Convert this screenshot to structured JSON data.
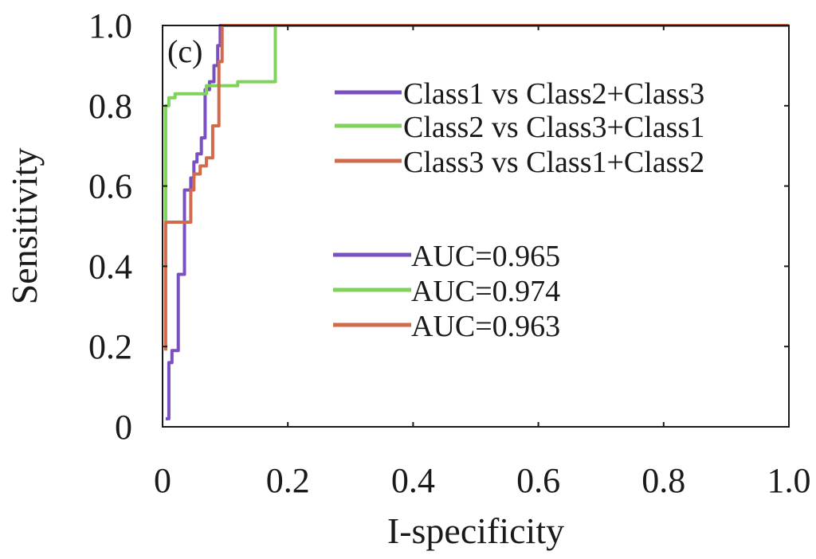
{
  "chart_data": {
    "type": "line",
    "panel_label": "(c)",
    "xlabel": "I-specificity",
    "ylabel": "Sensitivity",
    "xlim": [
      0,
      1
    ],
    "ylim": [
      0,
      1
    ],
    "x_ticks": [
      "0",
      "0.2",
      "0.4",
      "0.6",
      "0.8",
      "1.0"
    ],
    "y_ticks": [
      "0",
      "0.2",
      "0.4",
      "0.6",
      "0.8",
      "1.0"
    ],
    "grid": false,
    "legend_placement": "top-right",
    "series": [
      {
        "name": "Class1 vs Class2+Class3",
        "auc_label": "AUC=0.965",
        "color": "#7a4fc0",
        "points": [
          [
            0.005,
            0.02
          ],
          [
            0.01,
            0.02
          ],
          [
            0.01,
            0.16
          ],
          [
            0.015,
            0.16
          ],
          [
            0.015,
            0.19
          ],
          [
            0.025,
            0.19
          ],
          [
            0.025,
            0.38
          ],
          [
            0.035,
            0.38
          ],
          [
            0.035,
            0.59
          ],
          [
            0.045,
            0.59
          ],
          [
            0.045,
            0.62
          ],
          [
            0.05,
            0.62
          ],
          [
            0.05,
            0.66
          ],
          [
            0.055,
            0.66
          ],
          [
            0.055,
            0.68
          ],
          [
            0.062,
            0.68
          ],
          [
            0.062,
            0.72
          ],
          [
            0.068,
            0.72
          ],
          [
            0.068,
            0.84
          ],
          [
            0.075,
            0.84
          ],
          [
            0.075,
            0.86
          ],
          [
            0.082,
            0.86
          ],
          [
            0.082,
            0.9
          ],
          [
            0.088,
            0.9
          ],
          [
            0.088,
            0.95
          ],
          [
            0.092,
            0.95
          ],
          [
            0.092,
            1.0
          ],
          [
            1.0,
            1.0
          ]
        ]
      },
      {
        "name": "Class2 vs Class3+Class1",
        "auc_label": "AUC=0.974",
        "color": "#7fd35a",
        "points": [
          [
            0.005,
            0.51
          ],
          [
            0.005,
            0.8
          ],
          [
            0.01,
            0.8
          ],
          [
            0.01,
            0.82
          ],
          [
            0.02,
            0.82
          ],
          [
            0.02,
            0.83
          ],
          [
            0.07,
            0.83
          ],
          [
            0.07,
            0.85
          ],
          [
            0.12,
            0.85
          ],
          [
            0.12,
            0.86
          ],
          [
            0.18,
            0.86
          ],
          [
            0.18,
            1.0
          ],
          [
            1.0,
            1.0
          ]
        ]
      },
      {
        "name": "Class3 vs Class1+Class2",
        "auc_label": "AUC=0.963",
        "color": "#d26a4c",
        "points": [
          [
            0.005,
            0.19
          ],
          [
            0.005,
            0.51
          ],
          [
            0.045,
            0.51
          ],
          [
            0.045,
            0.59
          ],
          [
            0.05,
            0.59
          ],
          [
            0.05,
            0.63
          ],
          [
            0.06,
            0.63
          ],
          [
            0.06,
            0.65
          ],
          [
            0.07,
            0.65
          ],
          [
            0.07,
            0.67
          ],
          [
            0.08,
            0.67
          ],
          [
            0.08,
            0.75
          ],
          [
            0.09,
            0.75
          ],
          [
            0.09,
            0.91
          ],
          [
            0.095,
            0.91
          ],
          [
            0.095,
            1.0
          ],
          [
            1.0,
            1.0
          ]
        ]
      }
    ]
  }
}
